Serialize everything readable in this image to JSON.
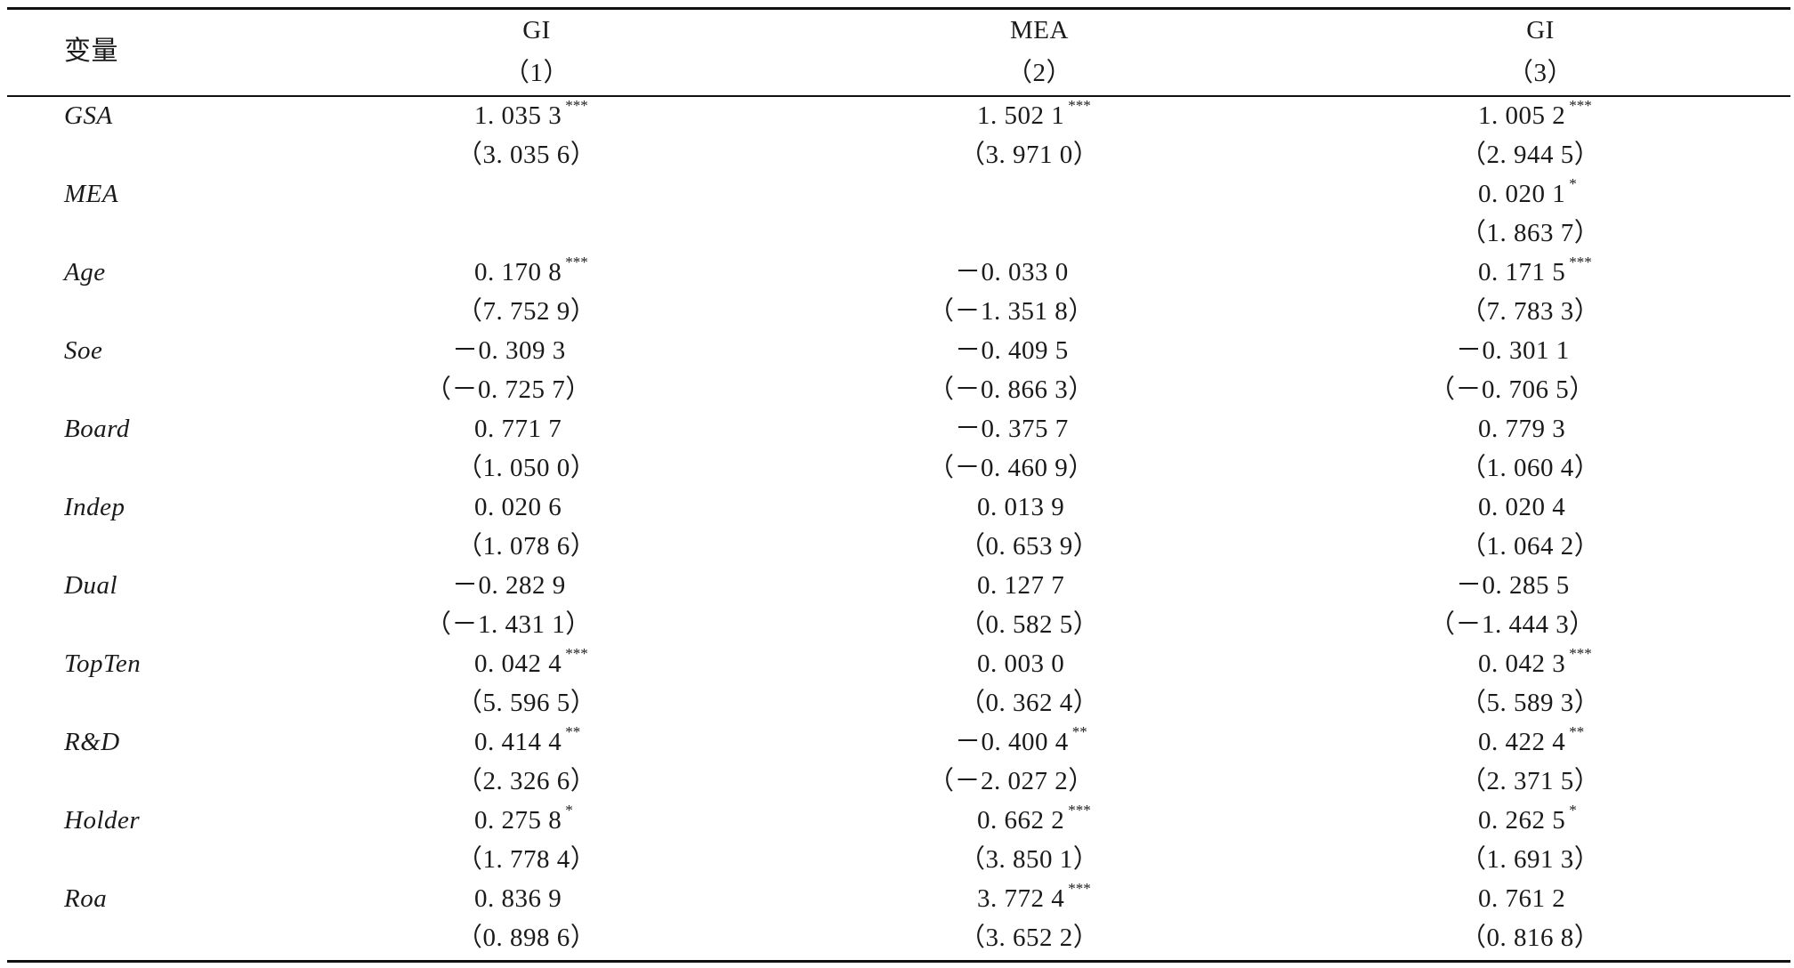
{
  "header": {
    "var_label": "变量",
    "columns": [
      {
        "dep": "GI",
        "num": "（1）"
      },
      {
        "dep": "MEA",
        "num": "（2）"
      },
      {
        "dep": "GI",
        "num": "（3）"
      }
    ]
  },
  "rows": [
    {
      "name": "GSA",
      "cells": [
        {
          "coef": "1. 035 3",
          "stars": "***",
          "t": "（3. 035 6）"
        },
        {
          "coef": "1. 502 1",
          "stars": "***",
          "t": "（3. 971 0）"
        },
        {
          "coef": "1. 005 2",
          "stars": "***",
          "t": "（2. 944 5）"
        }
      ]
    },
    {
      "name": "MEA",
      "cells": [
        {
          "coef": "",
          "stars": "",
          "t": ""
        },
        {
          "coef": "",
          "stars": "",
          "t": ""
        },
        {
          "coef": "0. 020 1",
          "stars": "*",
          "t": "（1. 863 7）"
        }
      ]
    },
    {
      "name": "Age",
      "cells": [
        {
          "coef": "0. 170 8",
          "stars": "***",
          "t": "（7. 752 9）"
        },
        {
          "coef": "－0. 033 0",
          "stars": "",
          "t": "（－1. 351 8）"
        },
        {
          "coef": "0. 171 5",
          "stars": "***",
          "t": "（7. 783 3）"
        }
      ]
    },
    {
      "name": "Soe",
      "cells": [
        {
          "coef": "－0. 309 3",
          "stars": "",
          "t": "（－0. 725 7）"
        },
        {
          "coef": "－0. 409 5",
          "stars": "",
          "t": "（－0. 866 3）"
        },
        {
          "coef": "－0. 301 1",
          "stars": "",
          "t": "（－0. 706 5）"
        }
      ]
    },
    {
      "name": "Board",
      "cells": [
        {
          "coef": "0. 771 7",
          "stars": "",
          "t": "（1. 050 0）"
        },
        {
          "coef": "－0. 375 7",
          "stars": "",
          "t": "（－0. 460 9）"
        },
        {
          "coef": "0. 779 3",
          "stars": "",
          "t": "（1. 060 4）"
        }
      ]
    },
    {
      "name": "Indep",
      "cells": [
        {
          "coef": "0. 020 6",
          "stars": "",
          "t": "（1. 078 6）"
        },
        {
          "coef": "0. 013 9",
          "stars": "",
          "t": "（0. 653 9）"
        },
        {
          "coef": "0. 020 4",
          "stars": "",
          "t": "（1. 064 2）"
        }
      ]
    },
    {
      "name": "Dual",
      "cells": [
        {
          "coef": "－0. 282 9",
          "stars": "",
          "t": "（－1. 431 1）"
        },
        {
          "coef": "0. 127 7",
          "stars": "",
          "t": "（0. 582 5）"
        },
        {
          "coef": "－0. 285 5",
          "stars": "",
          "t": "（－1. 444 3）"
        }
      ]
    },
    {
      "name": "TopTen",
      "cells": [
        {
          "coef": "0. 042 4",
          "stars": "***",
          "t": "（5. 596 5）"
        },
        {
          "coef": "0. 003 0",
          "stars": "",
          "t": "（0. 362 4）"
        },
        {
          "coef": "0. 042 3",
          "stars": "***",
          "t": "（5. 589 3）"
        }
      ]
    },
    {
      "name": "R&D",
      "cells": [
        {
          "coef": "0. 414 4",
          "stars": "**",
          "t": "（2. 326 6）"
        },
        {
          "coef": "－0. 400 4",
          "stars": "**",
          "t": "（－2. 027 2）"
        },
        {
          "coef": "0. 422 4",
          "stars": "**",
          "t": "（2. 371 5）"
        }
      ]
    },
    {
      "name": "Holder",
      "cells": [
        {
          "coef": "0. 275 8",
          "stars": "*",
          "t": "（1. 778 4）"
        },
        {
          "coef": "0. 662 2",
          "stars": "***",
          "t": "（3. 850 1）"
        },
        {
          "coef": "0. 262 5",
          "stars": "*",
          "t": "（1. 691 3）"
        }
      ]
    },
    {
      "name": "Roa",
      "cells": [
        {
          "coef": "0. 836 9",
          "stars": "",
          "t": "（0. 898 6）"
        },
        {
          "coef": "3. 772 4",
          "stars": "***",
          "t": "（3. 652 2）"
        },
        {
          "coef": "0. 761 2",
          "stars": "",
          "t": "（0. 816 8）"
        }
      ]
    }
  ]
}
